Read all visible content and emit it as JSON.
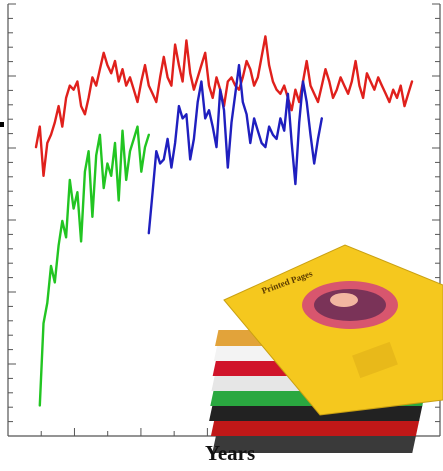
{
  "chart_data": {
    "type": "line",
    "xlabel": "Years",
    "ylabel": "",
    "title": "",
    "xlim": [
      0,
      100
    ],
    "ylim": [
      0,
      100
    ],
    "grid": false,
    "tick_labels_visible": false,
    "series": [
      {
        "color": "#e0201c",
        "x": [
          0,
          1,
          2,
          3,
          4,
          5,
          6,
          7,
          8,
          9,
          10,
          11,
          12,
          13,
          14,
          15,
          16,
          17,
          18,
          19,
          20,
          21,
          22,
          23,
          24,
          25,
          26,
          27,
          28,
          29,
          30,
          31,
          32,
          33,
          34,
          35,
          36,
          37,
          38,
          39,
          40,
          41,
          42,
          43,
          44,
          45,
          46,
          47,
          48,
          49,
          50,
          51,
          52,
          53,
          54,
          55,
          56,
          57,
          58,
          59,
          60,
          61,
          62,
          63,
          64,
          65,
          66,
          67,
          68,
          69,
          70,
          71,
          72,
          73,
          74,
          75,
          76,
          77,
          78,
          79,
          80,
          81,
          82,
          83,
          84,
          85,
          86,
          87,
          88,
          89,
          90,
          91,
          92,
          93,
          94,
          95,
          96,
          97,
          98,
          99,
          100
        ],
        "values": [
          69,
          74,
          62,
          70,
          72,
          75,
          79,
          74,
          81,
          84,
          83,
          85,
          79,
          77,
          81,
          86,
          84,
          88,
          92,
          89,
          87,
          90,
          85,
          88,
          84,
          86,
          83,
          80,
          85,
          89,
          84,
          82,
          80,
          86,
          91,
          86,
          84,
          94,
          89,
          85,
          95,
          87,
          83,
          86,
          89,
          92,
          84,
          81,
          86,
          83,
          79,
          85,
          86,
          84,
          83,
          86,
          90,
          88,
          84,
          86,
          91,
          96,
          89,
          85,
          83,
          82,
          84,
          81,
          78,
          83,
          80,
          85,
          90,
          84,
          82,
          80,
          84,
          88,
          85,
          81,
          83,
          86,
          84,
          82,
          85,
          90,
          84,
          81,
          87,
          85,
          83,
          86,
          84,
          82,
          80,
          83,
          81,
          84,
          79,
          82,
          85
        ]
      },
      {
        "color": "#1f1fbf",
        "x": [
          30,
          31,
          32,
          33,
          34,
          35,
          36,
          37,
          38,
          39,
          40,
          41,
          42,
          43,
          44,
          45,
          46,
          47,
          48,
          49,
          50,
          51,
          52,
          53,
          54,
          55,
          56,
          57,
          58,
          59,
          60,
          61,
          62,
          63,
          64,
          65,
          66,
          67,
          68,
          69,
          70,
          71,
          72,
          73,
          74,
          75,
          76
        ],
        "values": [
          48,
          58,
          68,
          65,
          66,
          71,
          64,
          70,
          79,
          76,
          77,
          66,
          71,
          80,
          85,
          76,
          78,
          74,
          69,
          83,
          78,
          64,
          75,
          82,
          89,
          80,
          77,
          70,
          76,
          73,
          70,
          69,
          74,
          72,
          71,
          76,
          73,
          82,
          70,
          60,
          75,
          85,
          80,
          72,
          65,
          71,
          76
        ]
      },
      {
        "color": "#22c522",
        "x": [
          1,
          2,
          3,
          4,
          5,
          6,
          7,
          8,
          9,
          10,
          11,
          12,
          13,
          14,
          15,
          16,
          17,
          18,
          19,
          20,
          21,
          22,
          23,
          24,
          25,
          26,
          27,
          28,
          29,
          30
        ],
        "values": [
          6,
          26,
          31,
          40,
          36,
          45,
          51,
          47,
          61,
          54,
          58,
          46,
          63,
          68,
          52,
          67,
          72,
          59,
          65,
          62,
          70,
          56,
          73,
          61,
          68,
          71,
          74,
          63,
          69,
          72
        ]
      }
    ]
  },
  "photo": {
    "subject": "stack-of-magazines",
    "cover_text": "Printed Pages"
  }
}
